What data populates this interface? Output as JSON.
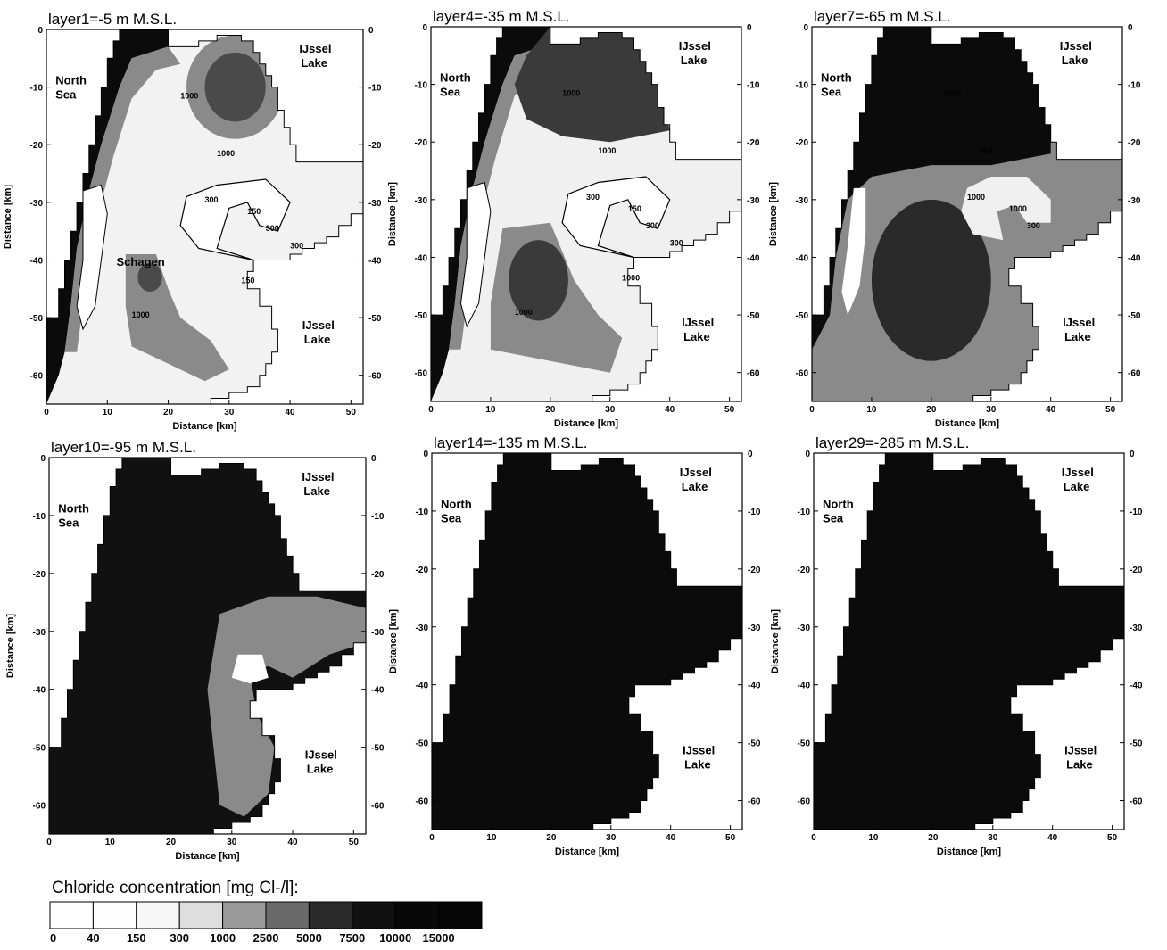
{
  "figure": {
    "region_labels": {
      "north_sea": [
        "North",
        "Sea"
      ],
      "ijssel_lake": [
        "IJssel",
        "Lake"
      ],
      "place": "Schagen"
    },
    "axis_labels": {
      "x": "Distance [km]",
      "y": "Distance [km]"
    },
    "x_ticks": [
      "0",
      "10",
      "20",
      "30",
      "40",
      "50"
    ],
    "y_ticks": [
      "0",
      "-10",
      "-20",
      "-30",
      "-40",
      "-50",
      "-60"
    ],
    "panels": [
      {
        "title": "layer1=-5 m M.S.L.",
        "contour_labels": [
          "1000",
          "1000",
          "300",
          "150",
          "300",
          "300",
          "150",
          "1000"
        ],
        "colors": {
          "sea": "#0b0b0b",
          "fresh": "#f2f2f2",
          "mid": "#8a8a8a",
          "dark": "#4a4a4a"
        }
      },
      {
        "title": "layer4=-35 m M.S.L.",
        "contour_labels": [
          "1000",
          "1000",
          "300",
          "150",
          "300",
          "300",
          "1000",
          "1000"
        ],
        "colors": {
          "sea": "#0b0b0b",
          "fresh": "#f0f0f0",
          "mid": "#8a8a8a",
          "dark": "#3a3a3a"
        }
      },
      {
        "title": "layer7=-65 m M.S.L.",
        "contour_labels": [
          "1000",
          "300",
          "1000",
          "1000",
          "300"
        ],
        "colors": {
          "sea": "#0b0b0b",
          "fresh": "#f0f0f0",
          "mid": "#8a8a8a",
          "dark": "#2a2a2a"
        }
      },
      {
        "title": "layer10=-95 m M.S.L.",
        "contour_labels": [],
        "colors": {
          "sea": "#0b0b0b",
          "fresh": "#f0f0f0",
          "mid": "#8a8a8a",
          "dark": "#111111"
        }
      },
      {
        "title": "layer14=-135 m M.S.L.",
        "contour_labels": [],
        "colors": {
          "sea": "#0b0b0b",
          "fresh": "#f0f0f0",
          "mid": "#8a8a8a",
          "dark": "#0b0b0b"
        }
      },
      {
        "title": "layer29=-285 m M.S.L.",
        "contour_labels": [],
        "colors": {
          "sea": "#0b0b0b",
          "fresh": "#f0f0f0",
          "mid": "#8a8a8a",
          "dark": "#0b0b0b"
        }
      }
    ]
  },
  "legend": {
    "title": "Chloride concentration [mg Cl-/l]:",
    "bins": [
      {
        "label": "0",
        "color": "#ffffff"
      },
      {
        "label": "40",
        "color": "#fdfdfd"
      },
      {
        "label": "150",
        "color": "#f7f7f7"
      },
      {
        "label": "300",
        "color": "#dedede"
      },
      {
        "label": "1000",
        "color": "#9a9a9a"
      },
      {
        "label": "2500",
        "color": "#6a6a6a"
      },
      {
        "label": "5000",
        "color": "#2a2a2a"
      },
      {
        "label": "7500",
        "color": "#111111"
      },
      {
        "label": "10000",
        "color": "#080808"
      },
      {
        "label": "15000",
        "color": "#050505"
      }
    ]
  }
}
